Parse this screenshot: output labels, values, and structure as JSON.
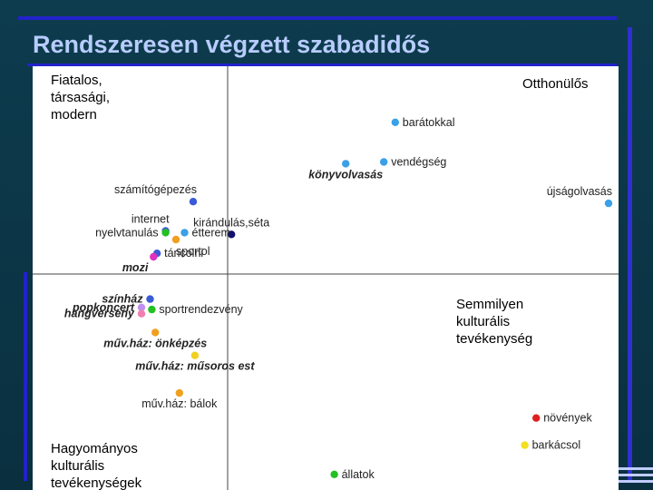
{
  "slide": {
    "title": "Rendszeresen végzett szabadidős"
  },
  "colors": {
    "background": "#0c3646",
    "title": "#b8ccff",
    "accent_lines": "#2222cc"
  },
  "chart_data": {
    "type": "scatter",
    "title": "",
    "xlabel": "",
    "ylabel": "",
    "xlim": [
      -1,
      1
    ],
    "ylim": [
      -1,
      1
    ],
    "grid": false,
    "axes": "cross at origin",
    "quadrant_labels": {
      "top_left": [
        "Fiatalos,",
        "társasági,",
        "modern"
      ],
      "top_right": [
        "Otthonülős"
      ],
      "bottom_right": [
        "Semmilyen",
        "kulturális",
        "tevékenység"
      ],
      "bottom_left": [
        "Hagyományos",
        "kulturális",
        "tevékenységek"
      ]
    },
    "points": [
      {
        "label": "barátokkal",
        "x": 0.44,
        "y": 0.88,
        "color": "#3aa0e8",
        "italic": false,
        "label_pos": "right"
      },
      {
        "label": "vendégség",
        "x": 0.41,
        "y": 0.65,
        "color": "#3aa0e8",
        "italic": false,
        "label_pos": "right"
      },
      {
        "label": "könyvolvasás",
        "x": 0.31,
        "y": 0.64,
        "color": "#3aa0e8",
        "italic": true,
        "label_pos": "below"
      },
      {
        "label": "újságolvasás",
        "x": 1.0,
        "y": 0.41,
        "color": "#3aa0e8",
        "italic": false,
        "label_pos": "above-left"
      },
      {
        "label": "számítógépezés",
        "x": -0.2,
        "y": 0.42,
        "color": "#3a5ad8",
        "italic": false,
        "label_pos": "above-left"
      },
      {
        "label": "kirándulás,séta",
        "x": 0.01,
        "y": 0.23,
        "color": "#101070",
        "italic": false,
        "label_pos": "above"
      },
      {
        "label": "internet",
        "x": -0.36,
        "y": 0.25,
        "color": "#3a5ad8",
        "italic": false,
        "label_pos": "above-left"
      },
      {
        "label": "étterem",
        "x": -0.25,
        "y": 0.24,
        "color": "#3aa0e8",
        "italic": false,
        "label_pos": "right"
      },
      {
        "label": "nyelvtanulás",
        "x": -0.36,
        "y": 0.24,
        "color": "#22c022",
        "italic": false,
        "label_pos": "left"
      },
      {
        "label": "sportol",
        "x": -0.3,
        "y": 0.2,
        "color": "#f0a020",
        "italic": false,
        "label_pos": "below-right"
      },
      {
        "label": "táncolni",
        "x": -0.41,
        "y": 0.12,
        "color": "#3a5ad8",
        "italic": false,
        "label_pos": "right"
      },
      {
        "label": "mozi",
        "x": -0.43,
        "y": 0.1,
        "color": "#e030c0",
        "italic": true,
        "label_pos": "below-left"
      },
      {
        "label": "színház",
        "x": -0.45,
        "y": -0.12,
        "color": "#3a5ad8",
        "italic": true,
        "label_pos": "left"
      },
      {
        "label": "sportrendezvény",
        "x": -0.44,
        "y": -0.17,
        "color": "#22c022",
        "italic": false,
        "label_pos": "right"
      },
      {
        "label": "popkoncert",
        "x": -0.5,
        "y": -0.16,
        "color": "#c090f0",
        "italic": true,
        "label_pos": "left"
      },
      {
        "label": "hangverseny",
        "x": -0.5,
        "y": -0.19,
        "color": "#f080b0",
        "italic": true,
        "label_pos": "left"
      },
      {
        "label": "műv.ház: önképzés",
        "x": -0.42,
        "y": -0.28,
        "color": "#f0a020",
        "italic": true,
        "label_pos": "below"
      },
      {
        "label": "műv.ház: műsoros est",
        "x": -0.19,
        "y": -0.39,
        "color": "#f0d020",
        "italic": true,
        "label_pos": "below"
      },
      {
        "label": "műv.ház: bálok",
        "x": -0.28,
        "y": -0.57,
        "color": "#f0a020",
        "italic": false,
        "label_pos": "below"
      },
      {
        "label": "növények",
        "x": 0.81,
        "y": -0.69,
        "color": "#e02020",
        "italic": false,
        "label_pos": "right"
      },
      {
        "label": "barkácsol",
        "x": 0.78,
        "y": -0.82,
        "color": "#f0e020",
        "italic": false,
        "label_pos": "right"
      },
      {
        "label": "állatok",
        "x": 0.28,
        "y": -0.96,
        "color": "#22c022",
        "italic": false,
        "label_pos": "right"
      }
    ]
  }
}
